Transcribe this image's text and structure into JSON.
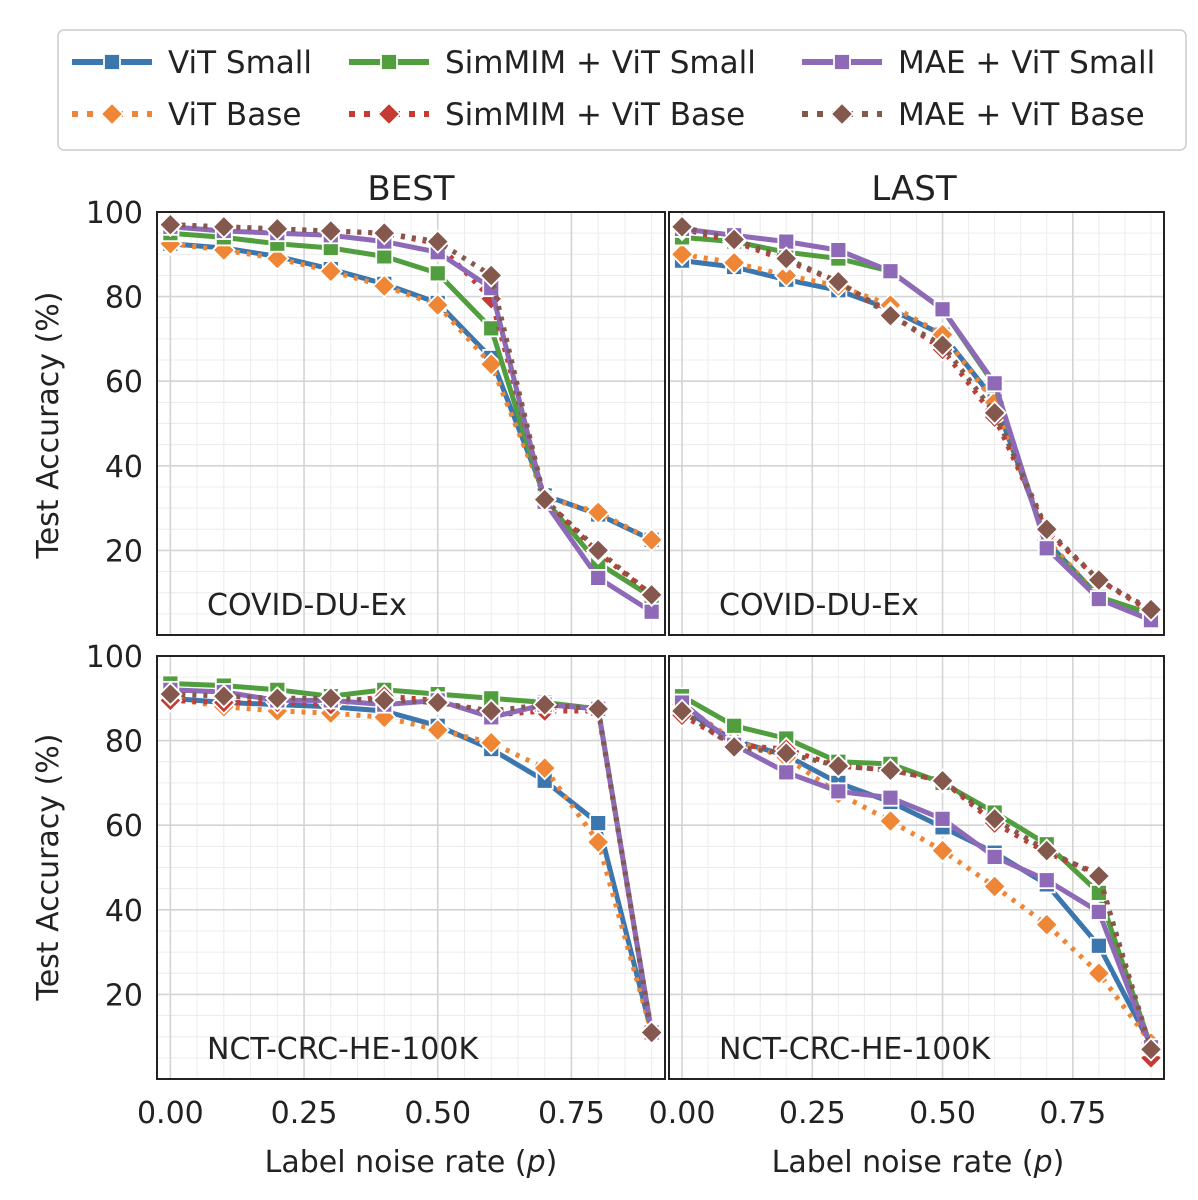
{
  "legend": {
    "placement": "top",
    "entries": [
      {
        "label": "ViT Small",
        "color": "#3b76af",
        "marker": "square",
        "dash": "solid"
      },
      {
        "label": "SimMIM + ViT Small",
        "color": "#519e3e",
        "marker": "square",
        "dash": "solid"
      },
      {
        "label": "MAE + ViT Small",
        "color": "#8d69b8",
        "marker": "square",
        "dash": "solid"
      },
      {
        "label": "ViT Base",
        "color": "#ef8636",
        "marker": "diamond",
        "dash": "dotted"
      },
      {
        "label": "SimMIM + ViT Base",
        "color": "#c53a32",
        "marker": "diamond",
        "dash": "dotted"
      },
      {
        "label": "MAE + ViT Base",
        "color": "#85584e",
        "marker": "diamond",
        "dash": "dotted"
      }
    ]
  },
  "axes": {
    "ylabel": "Test Accuracy (%)",
    "xlabel_prefix": "Label noise rate (",
    "xlabel_var": "p",
    "xlabel_suffix": ")",
    "xticks": [
      0,
      0.25,
      0.5,
      0.75
    ],
    "xtick_labels": [
      "0.00",
      "0.25",
      "0.50",
      "0.75"
    ],
    "yticks": [
      20,
      40,
      60,
      80,
      100
    ],
    "ytick_labels": [
      "20",
      "40",
      "60",
      "80",
      "100"
    ],
    "xlim": [
      -0.025,
      0.925
    ],
    "ylim": [
      0,
      100
    ],
    "grid": true
  },
  "chart_data": [
    {
      "type": "line",
      "column_title": "BEST",
      "dataset": "COVID-DU-Ex",
      "x": [
        0,
        0.1,
        0.2,
        0.3,
        0.4,
        0.5,
        0.6,
        0.7,
        0.8,
        0.9
      ],
      "series": [
        {
          "name": "ViT Small",
          "values": [
            92.5,
            91.5,
            89.5,
            86.5,
            83,
            78.5,
            65.5,
            33,
            28.5,
            22.5
          ]
        },
        {
          "name": "ViT Base",
          "values": [
            92.5,
            91,
            89,
            86,
            82.5,
            78,
            64,
            32.5,
            29,
            22.5
          ]
        },
        {
          "name": "SimMIM + ViT Small",
          "values": [
            95,
            94,
            92.5,
            91.5,
            89.5,
            85.5,
            72.5,
            32,
            17,
            9
          ]
        },
        {
          "name": "SimMIM + ViT Base",
          "values": [
            97,
            96.5,
            96,
            95.5,
            95,
            92.5,
            79.5,
            32,
            19.5,
            9.5
          ]
        },
        {
          "name": "MAE + ViT Small",
          "values": [
            96.5,
            95.5,
            95,
            94.5,
            93,
            90.5,
            82,
            31.5,
            13.5,
            5.5
          ]
        },
        {
          "name": "MAE + ViT Base",
          "values": [
            97,
            96.5,
            96,
            95.5,
            95,
            93,
            85,
            32,
            20,
            9.5
          ]
        }
      ]
    },
    {
      "type": "line",
      "column_title": "LAST",
      "dataset": "COVID-DU-Ex",
      "x": [
        0,
        0.1,
        0.2,
        0.3,
        0.4,
        0.5,
        0.6,
        0.7,
        0.8,
        0.9
      ],
      "series": [
        {
          "name": "ViT Small",
          "values": [
            88.5,
            87,
            84,
            81.5,
            77,
            71,
            55.5,
            22,
            9,
            5
          ]
        },
        {
          "name": "ViT Base",
          "values": [
            90,
            88,
            85,
            82.5,
            78,
            71,
            55,
            22.5,
            9,
            5
          ]
        },
        {
          "name": "SimMIM + ViT Small",
          "values": [
            94,
            93,
            90.5,
            89,
            86,
            77,
            59,
            21,
            9,
            5
          ]
        },
        {
          "name": "SimMIM + ViT Base",
          "values": [
            96,
            93,
            88.5,
            83.5,
            76,
            67.5,
            51.5,
            24.5,
            13,
            5.5
          ]
        },
        {
          "name": "MAE + ViT Small",
          "values": [
            96,
            94.5,
            93,
            91,
            86,
            77,
            59.5,
            20.5,
            8.5,
            3.5
          ]
        },
        {
          "name": "MAE + ViT Base",
          "values": [
            96.5,
            93.5,
            89,
            83.5,
            75.5,
            68.5,
            52.5,
            25,
            13,
            6
          ]
        }
      ]
    },
    {
      "type": "line",
      "column_title": "",
      "dataset": "NCT-CRC-HE-100K",
      "x": [
        0,
        0.1,
        0.2,
        0.3,
        0.4,
        0.5,
        0.6,
        0.7,
        0.8,
        0.9
      ],
      "series": [
        {
          "name": "ViT Small",
          "values": [
            90,
            89,
            88.5,
            88,
            87,
            83.5,
            78,
            70.5,
            60.5,
            11
          ]
        },
        {
          "name": "ViT Base",
          "values": [
            90,
            88,
            87,
            86.5,
            85.5,
            82.5,
            79.5,
            73.5,
            56,
            11
          ]
        },
        {
          "name": "SimMIM + ViT Small",
          "values": [
            93.5,
            93,
            92,
            90.5,
            92,
            91,
            90,
            89,
            87.5,
            11
          ]
        },
        {
          "name": "SimMIM + ViT Base",
          "values": [
            89.5,
            89,
            89,
            88.5,
            90.5,
            89.5,
            86,
            87,
            87,
            11
          ]
        },
        {
          "name": "MAE + ViT Small",
          "values": [
            92,
            91.5,
            89.5,
            89.5,
            88.5,
            89.5,
            85.5,
            88.5,
            87.5,
            11
          ]
        },
        {
          "name": "MAE + ViT Base",
          "values": [
            91,
            90.5,
            90,
            90,
            89.5,
            89,
            87,
            88.5,
            87.5,
            11
          ]
        }
      ]
    },
    {
      "type": "line",
      "column_title": "",
      "dataset": "NCT-CRC-HE-100K",
      "x": [
        0,
        0.1,
        0.2,
        0.3,
        0.4,
        0.5,
        0.6,
        0.7,
        0.8,
        0.9
      ],
      "series": [
        {
          "name": "ViT Small",
          "values": [
            87.5,
            80,
            76.5,
            70,
            65.5,
            59.5,
            53.5,
            46,
            31.5,
            8
          ]
        },
        {
          "name": "ViT Base",
          "values": [
            88.5,
            80,
            76,
            67.5,
            61,
            54,
            45.5,
            36.5,
            25,
            8.5
          ]
        },
        {
          "name": "SimMIM + ViT Small",
          "values": [
            90.5,
            83.5,
            80.5,
            75,
            74.5,
            70,
            63,
            55.5,
            44,
            7.5
          ]
        },
        {
          "name": "SimMIM + ViT Base",
          "values": [
            86,
            79,
            78,
            74,
            73,
            70.5,
            60.5,
            53.5,
            48.5,
            5
          ]
        },
        {
          "name": "MAE + ViT Small",
          "values": [
            89,
            79,
            72.5,
            68,
            66.5,
            61.5,
            52.5,
            47,
            39.5,
            7.5
          ]
        },
        {
          "name": "MAE + ViT Base",
          "values": [
            87,
            78.5,
            77,
            74,
            73,
            70.5,
            61.5,
            54,
            48,
            7
          ]
        }
      ]
    }
  ]
}
